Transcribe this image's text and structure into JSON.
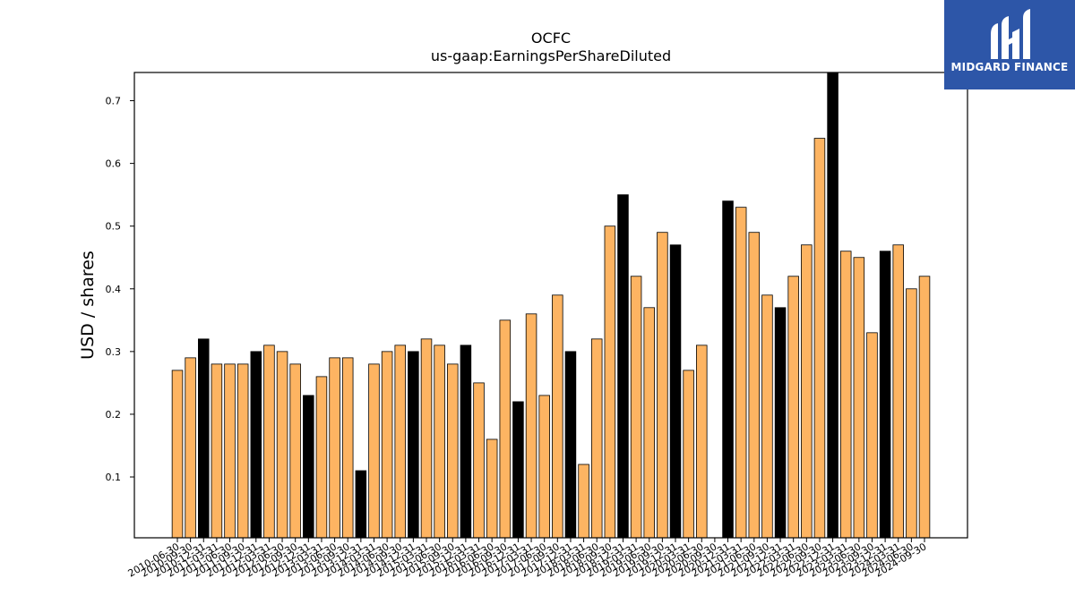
{
  "chart_data": {
    "type": "bar",
    "title": "OCFC",
    "subtitle": "us-gaap:EarningsPerShareDiluted",
    "xlabel": "",
    "ylabel": "USD / shares",
    "ylim": [
      0.003,
      0.745
    ],
    "yticks": [
      0.1,
      0.2,
      0.3,
      0.4,
      0.5,
      0.6,
      0.7
    ],
    "colors": {
      "quarter": "#fdb462",
      "annual": "#000000",
      "edge": "#000000"
    },
    "categories": [
      "2010-06-30",
      "2010-09-30",
      "2010-12-31",
      "2011-03-31",
      "2011-06-30",
      "2011-09-30",
      "2011-12-31",
      "2012-03-31",
      "2012-06-30",
      "2012-09-30",
      "2012-12-31",
      "2013-03-31",
      "2013-06-30",
      "2013-09-30",
      "2013-12-31",
      "2014-03-31",
      "2014-06-30",
      "2014-09-30",
      "2014-12-31",
      "2015-03-31",
      "2015-06-30",
      "2015-09-30",
      "2015-12-31",
      "2016-03-31",
      "2016-06-30",
      "2016-09-30",
      "2016-12-31",
      "2017-03-31",
      "2017-06-30",
      "2017-09-30",
      "2017-12-31",
      "2018-03-31",
      "2018-06-30",
      "2018-09-30",
      "2018-12-31",
      "2019-03-31",
      "2019-06-30",
      "2019-09-30",
      "2019-12-31",
      "2020-03-31",
      "2020-06-30",
      "2020-09-30",
      "2020-12-31",
      "2021-03-31",
      "2021-06-30",
      "2021-09-30",
      "2021-12-31",
      "2022-03-31",
      "2022-06-30",
      "2022-09-30",
      "2022-12-31",
      "2023-03-31",
      "2023-06-30",
      "2023-09-30",
      "2023-12-31",
      "2024-03-31",
      "2024-06-30",
      "2024-09-30"
    ],
    "values": [
      0.27,
      0.29,
      0.32,
      0.28,
      0.28,
      0.28,
      0.3,
      0.31,
      0.3,
      0.28,
      0.23,
      0.26,
      0.29,
      0.29,
      0.11,
      0.28,
      0.3,
      0.31,
      0.3,
      0.32,
      0.31,
      0.28,
      0.31,
      0.25,
      0.16,
      0.35,
      0.22,
      0.36,
      0.23,
      0.39,
      0.3,
      0.12,
      0.32,
      0.5,
      0.55,
      0.42,
      0.37,
      0.49,
      0.47,
      0.27,
      0.31,
      0.0,
      0.54,
      0.53,
      0.49,
      0.39,
      0.37,
      0.42,
      0.47,
      0.64,
      0.75,
      0.46,
      0.45,
      0.33,
      0.46,
      0.47,
      0.4,
      0.42
    ],
    "annual": [
      false,
      false,
      true,
      false,
      false,
      false,
      true,
      false,
      false,
      false,
      true,
      false,
      false,
      false,
      true,
      false,
      false,
      false,
      true,
      false,
      false,
      false,
      true,
      false,
      false,
      false,
      true,
      false,
      false,
      false,
      true,
      false,
      false,
      false,
      true,
      false,
      false,
      false,
      true,
      false,
      false,
      false,
      true,
      false,
      false,
      false,
      true,
      false,
      false,
      false,
      true,
      false,
      false,
      false,
      true,
      false,
      false,
      false
    ]
  },
  "logo": {
    "text": "MIDGARD FINANCE"
  }
}
